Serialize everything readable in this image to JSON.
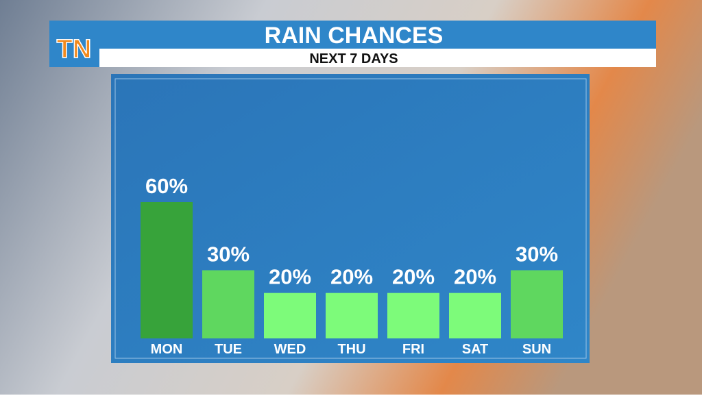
{
  "header": {
    "logo": "TN"
  },
  "chart_data": {
    "type": "bar",
    "title": "RAIN CHANCES",
    "subtitle": "NEXT 7 DAYS",
    "categories": [
      "MON",
      "TUE",
      "WED",
      "THU",
      "FRI",
      "SAT",
      "SUN"
    ],
    "values": [
      60,
      30,
      20,
      20,
      20,
      20,
      30
    ],
    "value_labels": [
      "60%",
      "30%",
      "20%",
      "20%",
      "20%",
      "20%",
      "30%"
    ],
    "colors": [
      "#37a33a",
      "#5fd75f",
      "#7dfb7a",
      "#7dfb7a",
      "#7dfb7a",
      "#7dfb7a",
      "#5fd75f"
    ]
  }
}
